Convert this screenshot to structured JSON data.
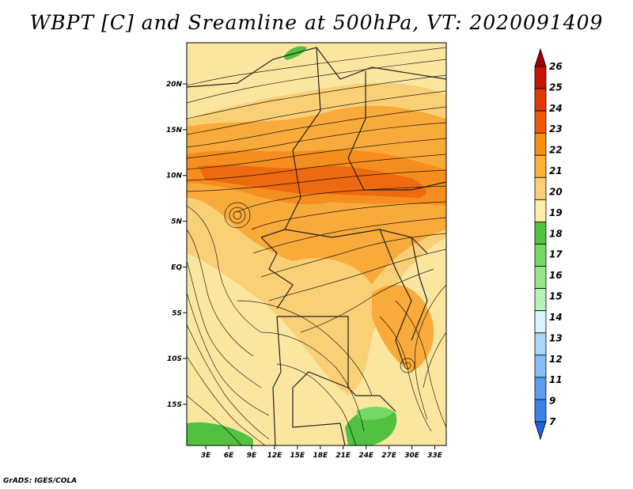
{
  "title": "WBPT [C] and Sreamline at 500hPa, VT: 2020091409",
  "credit": "GrADS: IGES/COLA",
  "map": {
    "lat_labels": [
      "20N",
      "15N",
      "10N",
      "5N",
      "EQ",
      "5S",
      "10S",
      "15S"
    ],
    "lon_labels": [
      "3E",
      "6E",
      "9E",
      "12E",
      "15E",
      "18E",
      "21E",
      "24E",
      "27E",
      "30E",
      "33E"
    ],
    "lat_range": [
      -19.5,
      24.5
    ],
    "lon_range": [
      0.5,
      34.5
    ]
  },
  "colorbar": {
    "levels": [
      "26",
      "25",
      "24",
      "23",
      "22",
      "21",
      "20",
      "19",
      "18",
      "17",
      "16",
      "15",
      "14",
      "13",
      "12",
      "11",
      "9",
      "7"
    ],
    "colors": [
      "#a00000",
      "#c81400",
      "#e03a00",
      "#ee5a08",
      "#f88e12",
      "#fbb238",
      "#fad077",
      "#fbeea6",
      "#52c13f",
      "#74d865",
      "#96e68a",
      "#b6f2b6",
      "#d8f4fb",
      "#a8d5f8",
      "#86bdf4",
      "#5a9cee",
      "#3a82ea",
      "#1e62dc"
    ]
  }
}
